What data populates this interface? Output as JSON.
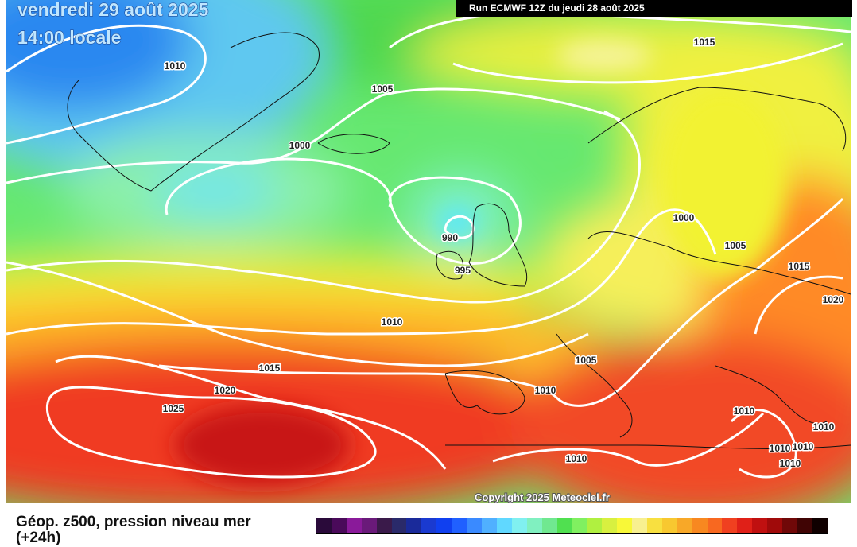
{
  "header": {
    "date": "vendredi 29 août 2025",
    "time": "14:00 locale",
    "run": "Run ECMWF 12Z du jeudi 28 août 2025"
  },
  "isobar_labels": [
    "1010",
    "1005",
    "1015",
    "1000",
    "990",
    "995",
    "1000",
    "1005",
    "1015",
    "1020",
    "1010",
    "1015",
    "1020",
    "1025",
    "1005",
    "1010",
    "1010",
    "1010",
    "1010",
    "1010",
    "1010",
    "1010"
  ],
  "copyright": "Copyright 2025 Meteociel.fr",
  "legend": {
    "title": "Géop. z500, pression niveau mer",
    "subtitle": "(+24h)"
  }
}
